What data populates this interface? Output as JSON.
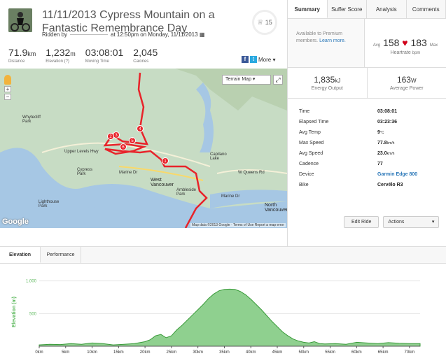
{
  "activity": {
    "title": "11/11/2013 Cypress Mountain on a Fantastic Remembrance Day",
    "ridden_prefix": "Ridden by",
    "ridden_suffix": "at 12:50pm on Monday, 11/11/2013",
    "kudos_count": "15"
  },
  "stats": [
    {
      "value": "71.9",
      "unit": "km",
      "label": "Distance"
    },
    {
      "value": "1,232",
      "unit": "m",
      "label": "Elevation (?)"
    },
    {
      "value": "03:08:01",
      "unit": "",
      "label": "Moving Time"
    },
    {
      "value": "2,045",
      "unit": "",
      "label": "Calories"
    }
  ],
  "share": {
    "more_label": "More ▾",
    "fb": "f",
    "tw": "t"
  },
  "map": {
    "terrain_label": "Terrain Map",
    "google": "Google",
    "footer": "Map data ©2013 Google · Terms of Use   Report a map error",
    "labels": {
      "whytecliff": "Whytecliff Park",
      "cypress_park": "Cypress Park",
      "lighthouse": "Lighthouse Park",
      "west_van": "West Vancouver",
      "ambleside": "Ambleside Park",
      "north_van": "North Vancouver",
      "capilano": "Capilano Lake",
      "marine": "Marine Dr",
      "upper_levels": "Upper Levels Hwy",
      "wqueens": "W Queens Rd",
      "marine2": "Marine Dr"
    },
    "markers": [
      "4",
      "5",
      "6",
      "3",
      "2",
      "1"
    ]
  },
  "tabs": [
    "Summary",
    "Suffer Score",
    "Analysis",
    "Comments"
  ],
  "premium": {
    "text": "Available to Premium members.",
    "link": "Learn more."
  },
  "heartrate": {
    "avg_label": "Avg",
    "avg": "158",
    "max": "183",
    "max_label": "Max",
    "caption": "Heartrate",
    "unit": "bpm"
  },
  "energy": {
    "value": "1,835",
    "unit": "kJ",
    "label": "Energy Output"
  },
  "power": {
    "value": "163",
    "unit": "W",
    "label": "Average Power"
  },
  "details": [
    {
      "k": "Time",
      "v": "03:08:01",
      "u": ""
    },
    {
      "k": "Elapsed Time",
      "v": "03:23:36",
      "u": ""
    },
    {
      "k": "Avg Temp",
      "v": "9",
      "u": "°C"
    },
    {
      "k": "Max Speed",
      "v": "77.8",
      "u": "km/h"
    },
    {
      "k": "Avg Speed",
      "v": "23.0",
      "u": "km/h"
    },
    {
      "k": "Cadence",
      "v": "77",
      "u": ""
    },
    {
      "k": "Device",
      "v": "Garmin Edge 800",
      "u": "",
      "link": true
    },
    {
      "k": "Bike",
      "v": "Cervélo R3",
      "u": ""
    }
  ],
  "buttons": {
    "edit": "Edit Ride",
    "actions": "Actions"
  },
  "bottom_tabs": [
    "Elevation",
    "Performance"
  ],
  "colors": {
    "accent": "#fc4c02",
    "route": "#e8232a",
    "elev_fill": "#5cb85c",
    "link": "#2a77b8"
  },
  "chart_data": {
    "type": "area",
    "title": "",
    "xlabel": "",
    "ylabel": "Elevation (m)",
    "x_unit": "km",
    "xlim": [
      0,
      72
    ],
    "ylim": [
      0,
      1050
    ],
    "y_ticks": [
      500,
      1000
    ],
    "y_tick_labels": [
      "500",
      "1,000"
    ],
    "x_ticks": [
      0,
      5,
      10,
      15,
      20,
      25,
      30,
      35,
      40,
      45,
      50,
      55,
      60,
      65,
      70
    ],
    "x_tick_labels": [
      "0km",
      "5km",
      "10km",
      "15km",
      "20km",
      "25km",
      "30km",
      "35km",
      "40km",
      "45km",
      "50km",
      "55km",
      "60km",
      "65km",
      "70km"
    ],
    "x": [
      0,
      2,
      4,
      6,
      8,
      10,
      12,
      14,
      16,
      18,
      20,
      21,
      22,
      23,
      24,
      25,
      26,
      27,
      28,
      29,
      30,
      31,
      32,
      33,
      34,
      35,
      36,
      37,
      38,
      39,
      40,
      41,
      42,
      43,
      44,
      45,
      46,
      47,
      48,
      49,
      50,
      51,
      52,
      53,
      54,
      56,
      58,
      60,
      62,
      64,
      66,
      68,
      70,
      72
    ],
    "y": [
      20,
      30,
      25,
      40,
      30,
      50,
      40,
      20,
      30,
      40,
      70,
      100,
      160,
      180,
      130,
      160,
      250,
      320,
      400,
      480,
      560,
      640,
      730,
      800,
      850,
      870,
      875,
      870,
      840,
      790,
      720,
      640,
      560,
      470,
      380,
      300,
      220,
      160,
      110,
      80,
      60,
      50,
      70,
      40,
      35,
      40,
      30,
      60,
      50,
      40,
      55,
      45,
      40,
      40
    ]
  }
}
